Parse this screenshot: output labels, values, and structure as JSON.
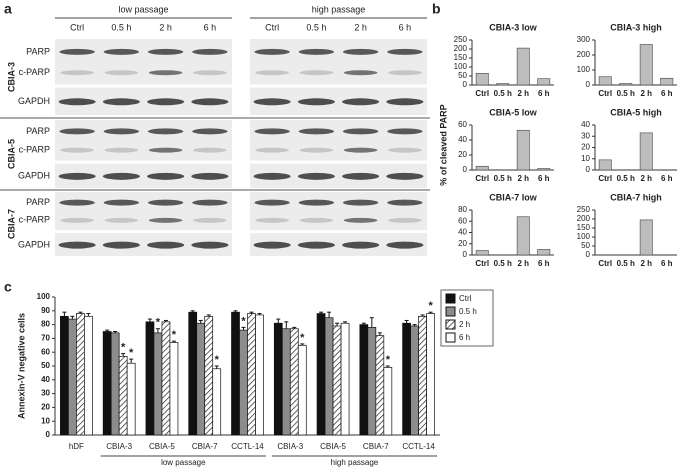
{
  "panel_labels": [
    "a",
    "b",
    "c"
  ],
  "blot": {
    "groups": [
      "low passage",
      "high passage"
    ],
    "lanes": [
      "Ctrl",
      "0.5 h",
      "2 h",
      "6 h"
    ],
    "lines": [
      {
        "name": "CBIA-3",
        "proteins": [
          "PARP",
          "c-PARP",
          "GAPDH"
        ]
      },
      {
        "name": "CBIA-5",
        "proteins": [
          "PARP",
          "c-PARP",
          "GAPDH"
        ]
      },
      {
        "name": "CBIA-7",
        "proteins": [
          "PARP",
          "c-PARP",
          "GAPDH"
        ]
      }
    ]
  },
  "panel_b_ylabel": "% of cleaved PARP",
  "chart_data": [
    {
      "type": "bar",
      "title": "CBIA-3 low",
      "categories": [
        "Ctrl",
        "0.5 h",
        "2 h",
        "6 h"
      ],
      "values": [
        65,
        8,
        205,
        35
      ],
      "color": "#bdbdbd",
      "ylim": [
        0,
        250
      ],
      "yticks": [
        0,
        50,
        100,
        150,
        200,
        250
      ]
    },
    {
      "type": "bar",
      "title": "CBIA-3 high",
      "categories": [
        "Ctrl",
        "0.5 h",
        "2 h",
        "6 h"
      ],
      "values": [
        55,
        10,
        270,
        45
      ],
      "color": "#bdbdbd",
      "ylim": [
        0,
        300
      ],
      "yticks": [
        0,
        100,
        200,
        300
      ]
    },
    {
      "type": "bar",
      "title": "CBIA-5 low",
      "categories": [
        "Ctrl",
        "0.5 h",
        "2 h",
        "6 h"
      ],
      "values": [
        5,
        0,
        53,
        2
      ],
      "color": "#bdbdbd",
      "ylim": [
        0,
        60
      ],
      "yticks": [
        0,
        20,
        40,
        60
      ]
    },
    {
      "type": "bar",
      "title": "CBIA-5 high",
      "categories": [
        "Ctrl",
        "0.5 h",
        "2 h",
        "6 h"
      ],
      "values": [
        9,
        0,
        33,
        0
      ],
      "color": "#bdbdbd",
      "ylim": [
        0,
        40
      ],
      "yticks": [
        0,
        10,
        20,
        30,
        40
      ]
    },
    {
      "type": "bar",
      "title": "CBIA-7 low",
      "categories": [
        "Ctrl",
        "0.5 h",
        "2 h",
        "6 h"
      ],
      "values": [
        8,
        0,
        68,
        10
      ],
      "color": "#bdbdbd",
      "ylim": [
        0,
        80
      ],
      "yticks": [
        0,
        20,
        40,
        60,
        80
      ]
    },
    {
      "type": "bar",
      "title": "CBIA-7 high",
      "categories": [
        "Ctrl",
        "0.5 h",
        "2 h",
        "6 h"
      ],
      "values": [
        0,
        0,
        195,
        0
      ],
      "color": "#bdbdbd",
      "ylim": [
        0,
        250
      ],
      "yticks": [
        0,
        50,
        100,
        150,
        200,
        250
      ]
    },
    {
      "type": "bar",
      "ylabel": "Annexin-V negative cells",
      "categories": [
        "hDF",
        "CBIA-3",
        "CBIA-5",
        "CBIA-7",
        "CCTL-14",
        "CBIA-3",
        "CBIA-5",
        "CBIA-7",
        "CCTL-14"
      ],
      "groups": [
        {
          "label": "low passage"
        },
        {
          "label": "high passage"
        }
      ],
      "ylim": [
        0,
        100
      ],
      "yticks": [
        0,
        10,
        20,
        30,
        40,
        50,
        60,
        70,
        80,
        90,
        100
      ],
      "series": [
        {
          "name": "Ctrl",
          "color": "#111111",
          "values": [
            86,
            75,
            82,
            89,
            89,
            81,
            88,
            80,
            81
          ],
          "errors": [
            3,
            1,
            2,
            1,
            1,
            3,
            1,
            1,
            2
          ],
          "stars": [
            null,
            null,
            null,
            null,
            null,
            null,
            null,
            null,
            null
          ]
        },
        {
          "name": "0.5 h",
          "color": "#8c8c8c",
          "values": [
            84,
            74,
            74,
            81,
            76,
            77,
            85,
            78,
            79
          ],
          "errors": [
            2,
            1,
            3,
            2,
            2,
            5,
            4,
            7,
            1
          ],
          "stars": [
            null,
            null,
            "*",
            null,
            "*",
            null,
            null,
            null,
            null
          ]
        },
        {
          "name": "2 h",
          "color": "#ffffff",
          "pattern": "diagonal",
          "values": [
            88,
            57,
            82,
            86,
            88,
            77,
            79,
            72,
            86
          ],
          "errors": [
            1,
            2,
            1,
            1,
            1,
            1,
            2,
            2,
            1
          ],
          "stars": [
            null,
            "*",
            null,
            null,
            null,
            null,
            null,
            null,
            null
          ]
        },
        {
          "name": "6 h",
          "color": "#ffffff",
          "values": [
            86,
            52,
            67,
            48,
            87,
            65,
            81,
            49,
            88
          ],
          "errors": [
            2,
            3,
            1,
            2,
            1,
            1,
            1,
            1,
            1
          ],
          "stars": [
            null,
            "*",
            "*",
            "*",
            null,
            "*",
            null,
            "*",
            "*"
          ]
        }
      ]
    }
  ]
}
